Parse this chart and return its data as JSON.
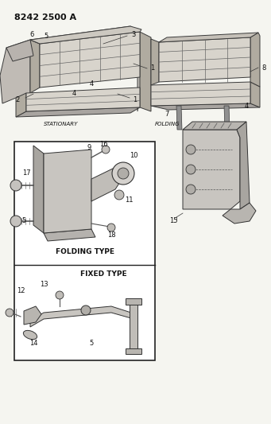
{
  "title": "8242 2500 A",
  "bg_color": "#f5f5f0",
  "text_color": "#111111",
  "stationary_label": "STATIONARY",
  "folding_label": "FOLDING",
  "folding_type_label": "FOLDING TYPE",
  "fixed_type_label": "FIXED TYPE",
  "title_fontsize": 8,
  "label_fontsize": 6.5,
  "note_fontsize": 5.5,
  "seat_color": "#d8d4cc",
  "seat_edge": "#3a3a3a",
  "seat_dark": "#b0aba0",
  "seat_stripe": "#888880",
  "box_color": "#ffffff",
  "box_edge": "#333333"
}
